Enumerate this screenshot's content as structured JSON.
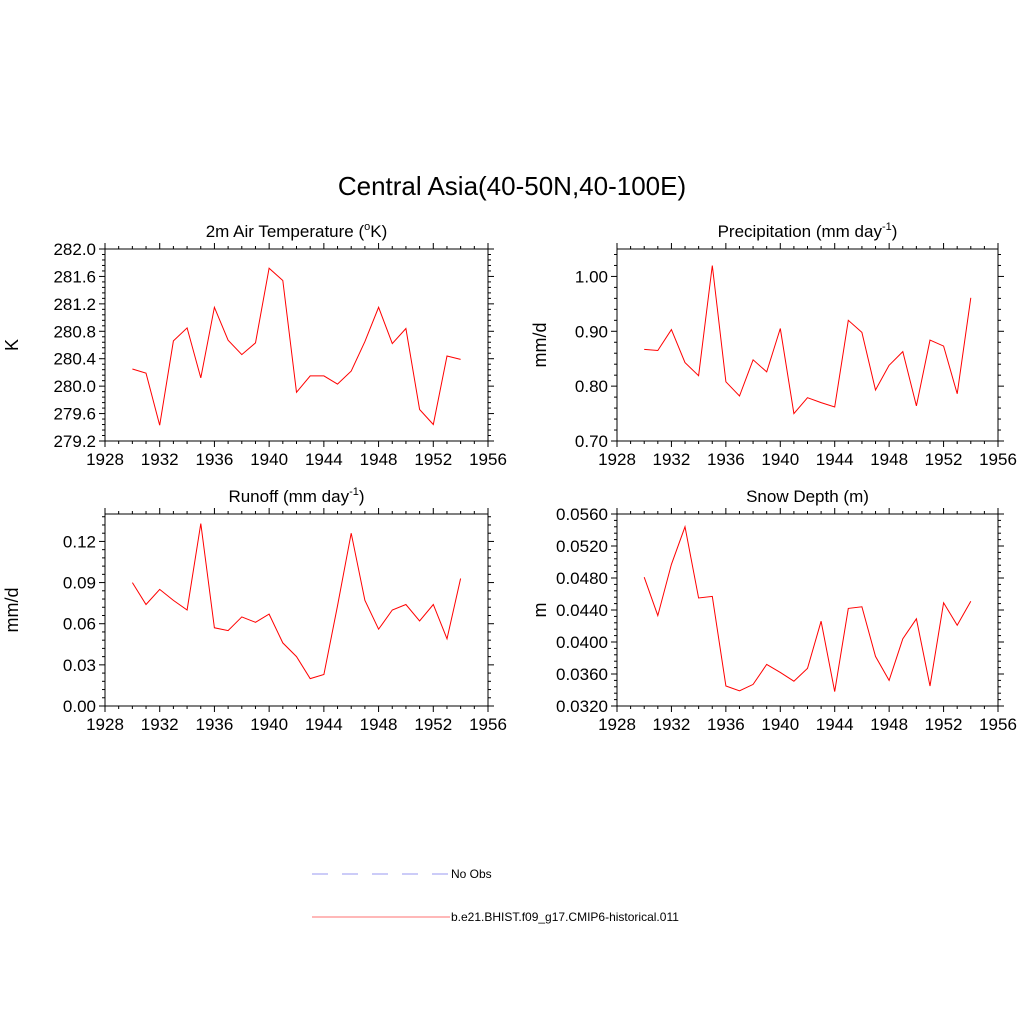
{
  "figure": {
    "title": "Central Asia(40-50N,40-100E)",
    "legend": [
      {
        "label": "No Obs",
        "color": "#9a9af0",
        "style": "dashed"
      },
      {
        "label": "b.e21.BHIST.f09_g17.CMIP6-historical.011",
        "color": "#ff7070",
        "style": "solid"
      }
    ]
  },
  "chart_data": [
    {
      "type": "line",
      "title": "2m Air Temperature (",
      "title_sup": "o",
      "title_end": "K)",
      "ylabel": "K",
      "xlim": [
        1928,
        1956
      ],
      "ylim": [
        279.2,
        282.0
      ],
      "xticks": [
        "1928",
        "1932",
        "1936",
        "1940",
        "1944",
        "1948",
        "1952",
        "1956"
      ],
      "yticks": [
        "279.2",
        "279.6",
        "280.0",
        "280.4",
        "280.8",
        "281.2",
        "281.6",
        "282.0"
      ],
      "series": [
        {
          "color": "#ff0000",
          "x": [
            1930,
            1931,
            1932,
            1933,
            1934,
            1935,
            1936,
            1937,
            1938,
            1939,
            1940,
            1941,
            1942,
            1943,
            1944,
            1945,
            1946,
            1947,
            1948,
            1949,
            1950,
            1951,
            1952,
            1953,
            1954
          ],
          "values": [
            280.25,
            280.19,
            279.43,
            280.66,
            280.85,
            280.12,
            281.15,
            280.67,
            280.46,
            280.63,
            281.72,
            281.54,
            279.91,
            280.15,
            280.15,
            280.03,
            280.22,
            280.65,
            281.15,
            280.62,
            280.84,
            279.66,
            279.44,
            280.44,
            280.39
          ]
        }
      ]
    },
    {
      "type": "line",
      "title": "Precipitation (mm day",
      "title_sup": "-1",
      "title_end": ")",
      "ylabel": "mm/d",
      "xlim": [
        1928,
        1956
      ],
      "ylim": [
        0.7,
        1.05
      ],
      "xticks": [
        "1928",
        "1932",
        "1936",
        "1940",
        "1944",
        "1948",
        "1952",
        "1956"
      ],
      "yticks": [
        "0.70",
        "0.80",
        "0.90",
        "1.00"
      ],
      "series": [
        {
          "color": "#ff0000",
          "x": [
            1930,
            1931,
            1932,
            1933,
            1934,
            1935,
            1936,
            1937,
            1938,
            1939,
            1940,
            1941,
            1942,
            1943,
            1944,
            1945,
            1946,
            1947,
            1948,
            1949,
            1950,
            1951,
            1952,
            1953,
            1954
          ],
          "values": [
            0.867,
            0.865,
            0.903,
            0.843,
            0.819,
            1.02,
            0.808,
            0.782,
            0.848,
            0.826,
            0.905,
            0.75,
            0.779,
            0.77,
            0.762,
            0.92,
            0.898,
            0.793,
            0.838,
            0.863,
            0.764,
            0.884,
            0.873,
            0.786,
            0.961
          ]
        }
      ]
    },
    {
      "type": "line",
      "title": "Runoff (mm day",
      "title_sup": "-1",
      "title_end": ")",
      "ylabel": "mm/d",
      "xlim": [
        1928,
        1956
      ],
      "ylim": [
        0.0,
        0.14
      ],
      "xticks": [
        "1928",
        "1932",
        "1936",
        "1940",
        "1944",
        "1948",
        "1952",
        "1956"
      ],
      "yticks": [
        "0.00",
        "0.03",
        "0.06",
        "0.09",
        "0.12"
      ],
      "series": [
        {
          "color": "#ff0000",
          "x": [
            1930,
            1931,
            1932,
            1933,
            1934,
            1935,
            1936,
            1937,
            1938,
            1939,
            1940,
            1941,
            1942,
            1943,
            1944,
            1945,
            1946,
            1947,
            1948,
            1949,
            1950,
            1951,
            1952,
            1953,
            1954
          ],
          "values": [
            0.09,
            0.074,
            0.085,
            0.077,
            0.07,
            0.133,
            0.057,
            0.055,
            0.065,
            0.061,
            0.067,
            0.046,
            0.036,
            0.02,
            0.023,
            0.073,
            0.126,
            0.077,
            0.056,
            0.07,
            0.074,
            0.062,
            0.074,
            0.049,
            0.093
          ]
        }
      ]
    },
    {
      "type": "line",
      "title": "Snow Depth (m)",
      "title_sup": "",
      "title_end": "",
      "ylabel": "m",
      "xlim": [
        1928,
        1956
      ],
      "ylim": [
        0.032,
        0.056
      ],
      "xticks": [
        "1928",
        "1932",
        "1936",
        "1940",
        "1944",
        "1948",
        "1952",
        "1956"
      ],
      "yticks": [
        "0.0320",
        "0.0360",
        "0.0400",
        "0.0440",
        "0.0480",
        "0.0520",
        "0.0560"
      ],
      "series": [
        {
          "color": "#ff0000",
          "x": [
            1930,
            1931,
            1932,
            1933,
            1934,
            1935,
            1936,
            1937,
            1938,
            1939,
            1940,
            1941,
            1942,
            1943,
            1944,
            1945,
            1946,
            1947,
            1948,
            1949,
            1950,
            1951,
            1952,
            1953,
            1954
          ],
          "values": [
            0.0481,
            0.0433,
            0.0497,
            0.0544,
            0.0455,
            0.0457,
            0.0345,
            0.0339,
            0.0347,
            0.0372,
            0.0362,
            0.0351,
            0.0367,
            0.0426,
            0.0338,
            0.0442,
            0.0444,
            0.0382,
            0.0352,
            0.0404,
            0.0429,
            0.0345,
            0.0449,
            0.0421,
            0.0451
          ]
        }
      ]
    }
  ]
}
